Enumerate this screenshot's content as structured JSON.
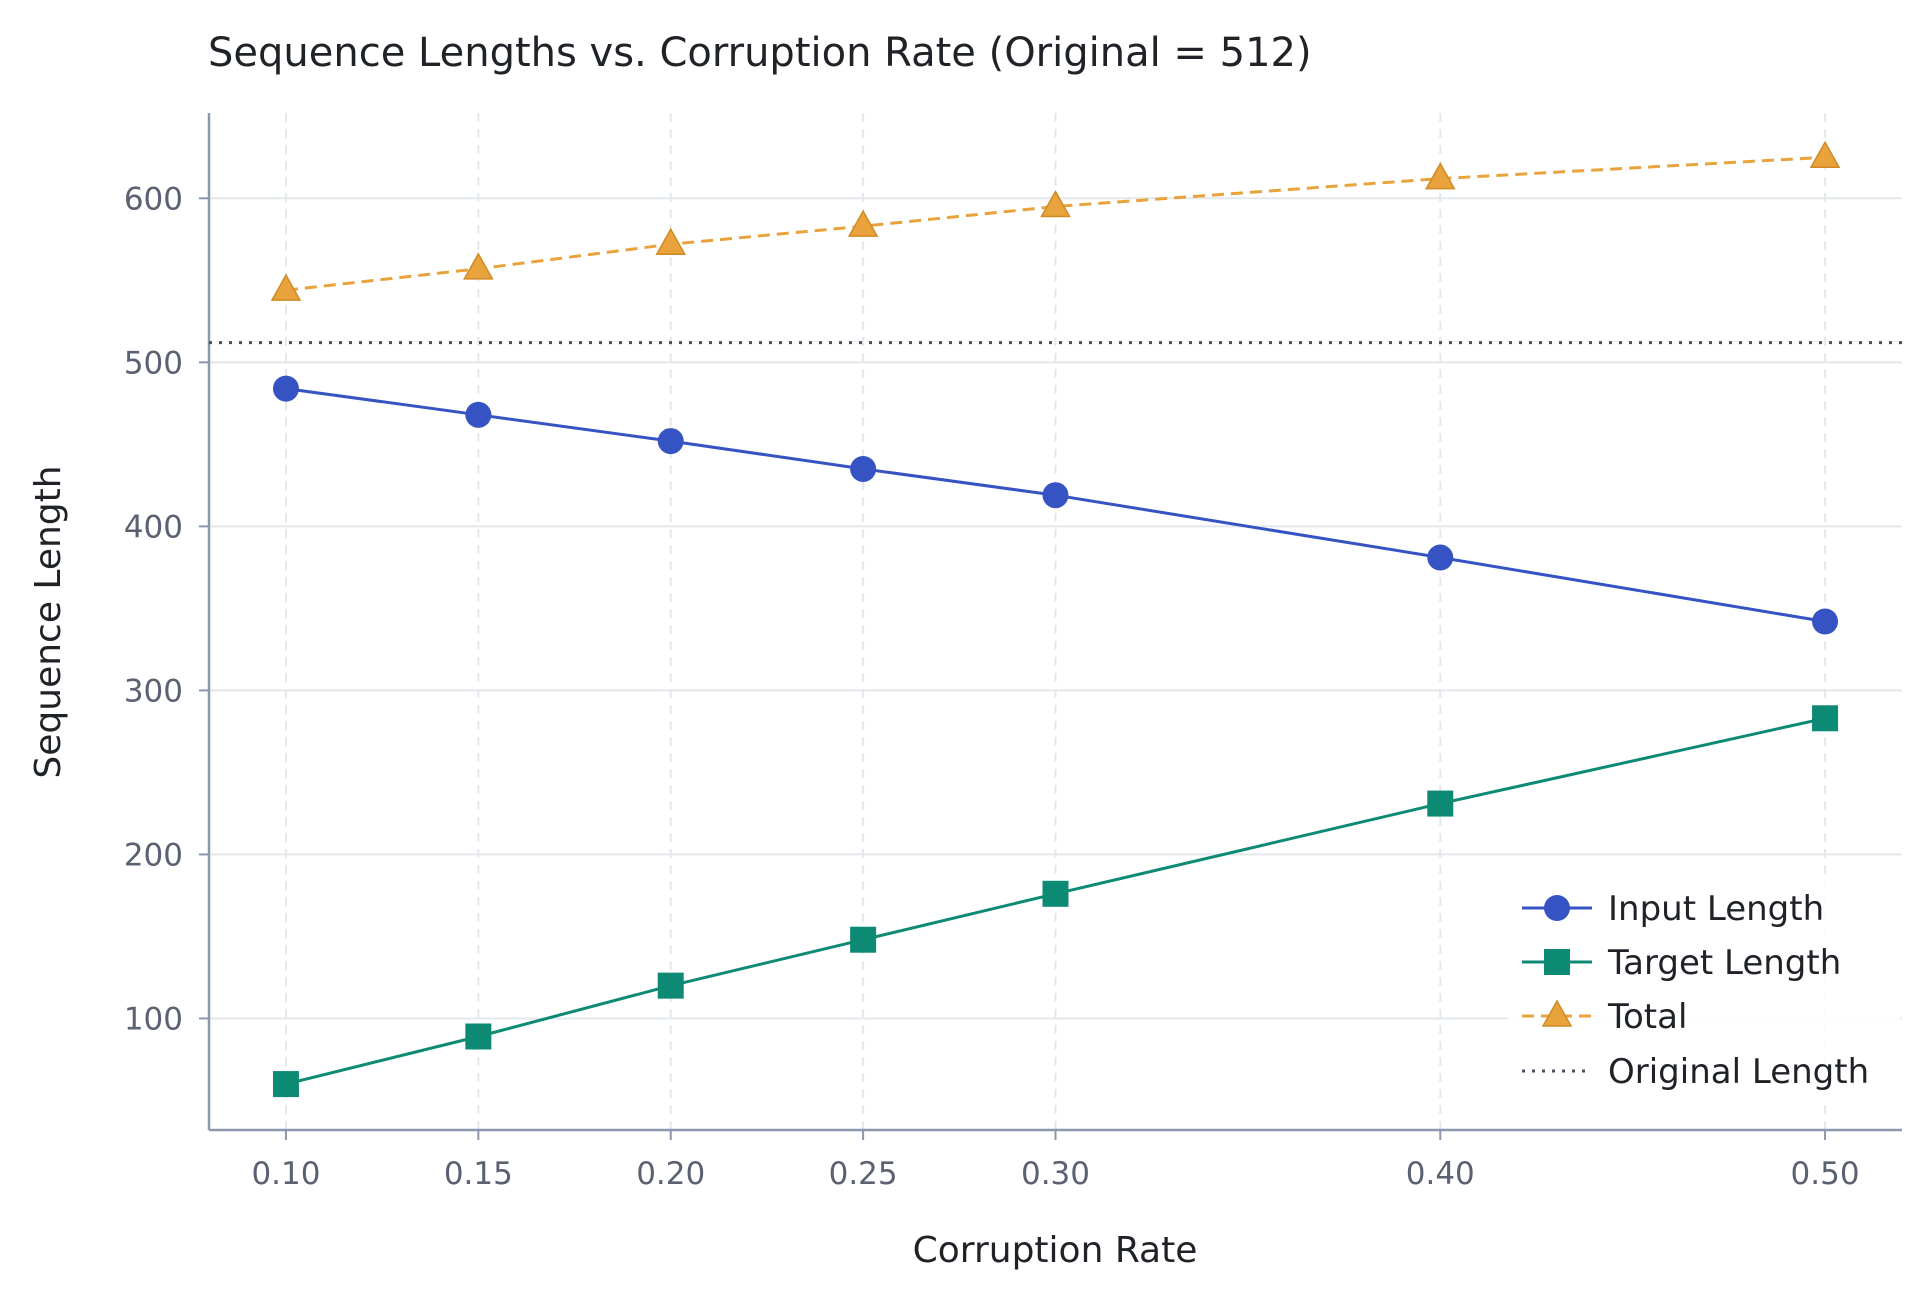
{
  "chart_data": {
    "type": "line",
    "title": "Sequence Lengths vs. Corruption Rate (Original = 512)",
    "xlabel": "Corruption Rate",
    "ylabel": "Sequence Length",
    "x": [
      0.1,
      0.15,
      0.2,
      0.25,
      0.3,
      0.4,
      0.5
    ],
    "x_tick_labels": [
      "0.10",
      "0.15",
      "0.20",
      "0.25",
      "0.30",
      "0.40",
      "0.50"
    ],
    "y_ticks": [
      100,
      200,
      300,
      400,
      500,
      600
    ],
    "xlim": [
      0.08,
      0.52
    ],
    "ylim": [
      32,
      652
    ],
    "grid": true,
    "legend_position": "bottom-right",
    "series": [
      {
        "name": "Input Length",
        "values": [
          484,
          468,
          452,
          435,
          419,
          381,
          342
        ],
        "color": "#3653c4",
        "marker": "circle",
        "line_style": "solid"
      },
      {
        "name": "Target Length",
        "values": [
          60,
          89,
          120,
          148,
          176,
          231,
          283
        ],
        "color": "#0d8a74",
        "marker": "square",
        "line_style": "solid"
      },
      {
        "name": "Total",
        "values": [
          544,
          557,
          572,
          583,
          595,
          612,
          625
        ],
        "color": "#e8a33d",
        "marker": "triangle",
        "line_style": "dashed"
      }
    ],
    "reference_line": {
      "name": "Original Length",
      "y": 512,
      "color": "#4a4f5c",
      "line_style": "dotted"
    }
  }
}
